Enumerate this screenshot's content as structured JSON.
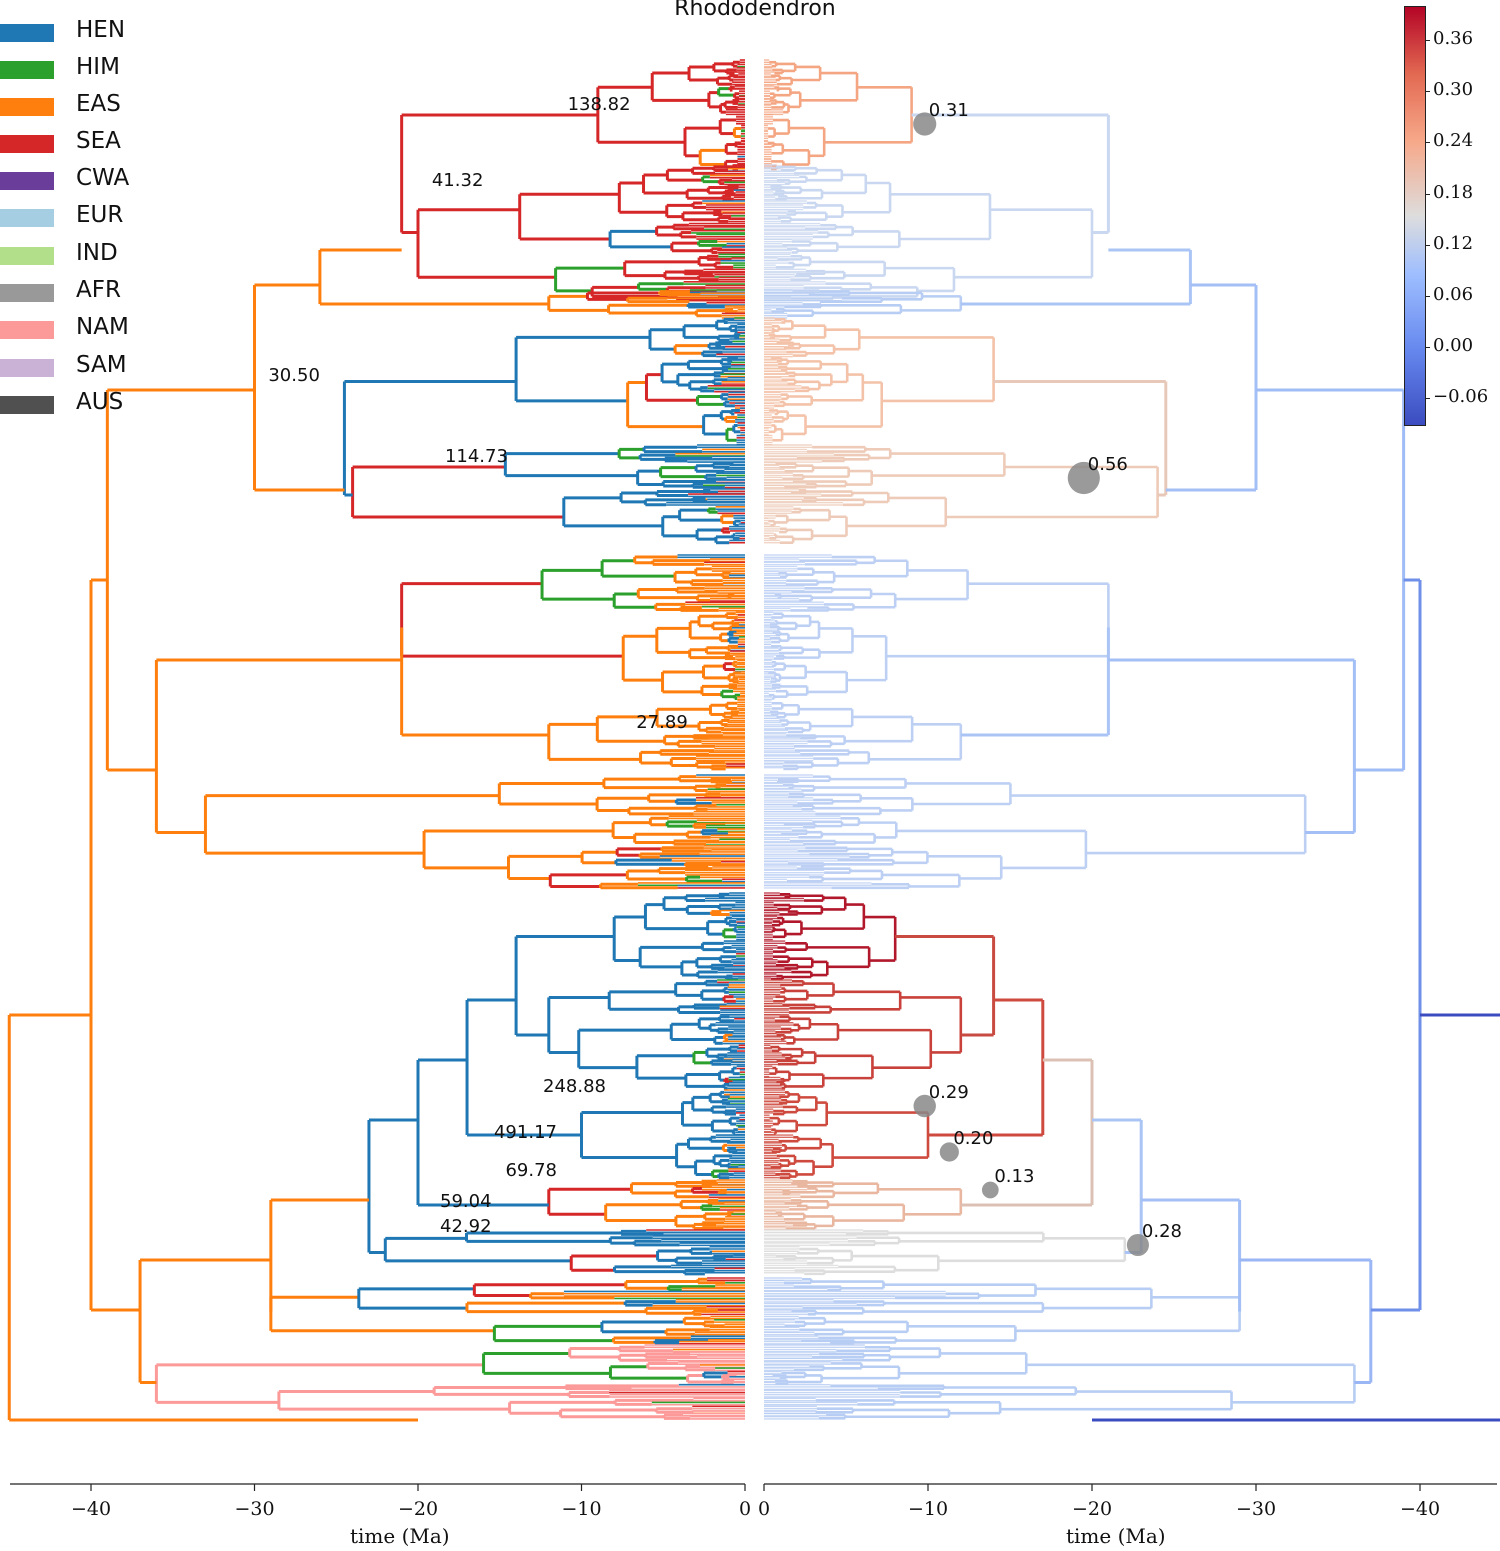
{
  "title": "Rhododendron",
  "legend": [
    {
      "label": "HEN",
      "color": "#1f77b4"
    },
    {
      "label": "HIM",
      "color": "#2ca02c"
    },
    {
      "label": "EAS",
      "color": "#ff7f0e"
    },
    {
      "label": "SEA",
      "color": "#d62728"
    },
    {
      "label": "CWA",
      "color": "#6a3d9a"
    },
    {
      "label": "EUR",
      "color": "#a6cee3"
    },
    {
      "label": "IND",
      "color": "#b2df8a"
    },
    {
      "label": "AFR",
      "color": "#999999"
    },
    {
      "label": "NAM",
      "color": "#fb9a99"
    },
    {
      "label": "SAM",
      "color": "#cab2d6"
    },
    {
      "label": "AUS",
      "color": "#505050"
    }
  ],
  "chart_data": [
    {
      "type": "phylogenetic tree",
      "panel": "left",
      "xlabel": "time (Ma)",
      "xlim": [
        -45,
        0
      ],
      "xticks": [
        -40,
        -30,
        -20,
        -10,
        0
      ],
      "xtick_labels": [
        "−40",
        "−30",
        "−20",
        "−10",
        "0"
      ],
      "node_labels": [
        {
          "text": "138.82",
          "x": -7.0
        },
        {
          "text": "41.32",
          "x": -16.0
        },
        {
          "text": "30.50",
          "x": -26.0
        },
        {
          "text": "114.73",
          "x": -14.5
        },
        {
          "text": "27.89",
          "x": -3.5
        },
        {
          "text": "248.88",
          "x": -8.5
        },
        {
          "text": "491.17",
          "x": -11.5
        },
        {
          "text": "69.78",
          "x": -11.5
        },
        {
          "text": "59.04",
          "x": -15.5
        },
        {
          "text": "42.92",
          "x": -15.5
        }
      ]
    },
    {
      "type": "phylogenetic tree",
      "panel": "right",
      "xlabel": "time (Ma)",
      "xlim": [
        0,
        -45
      ],
      "xticks": [
        0,
        -10,
        -20,
        -30,
        -40
      ],
      "xtick_labels": [
        "0",
        "−10",
        "−20",
        "−30",
        "−40"
      ],
      "rate_markers": [
        {
          "value": 0.31,
          "label": "0.31",
          "x": -9.8
        },
        {
          "value": 0.56,
          "label": "0.56",
          "x": -19.5
        },
        {
          "value": 0.29,
          "label": "0.29",
          "x": -9.8
        },
        {
          "value": 0.2,
          "label": "0.20",
          "x": -11.3
        },
        {
          "value": 0.13,
          "label": "0.13",
          "x": -13.8
        },
        {
          "value": 0.28,
          "label": "0.28",
          "x": -22.8
        }
      ]
    }
  ],
  "colorbar": {
    "ticks": [
      "0.36",
      "0.30",
      "0.24",
      "0.18",
      "0.12",
      "0.06",
      "0.00",
      "−0.06"
    ],
    "range": [
      -0.09,
      0.4
    ],
    "cmap": "coolwarm"
  }
}
